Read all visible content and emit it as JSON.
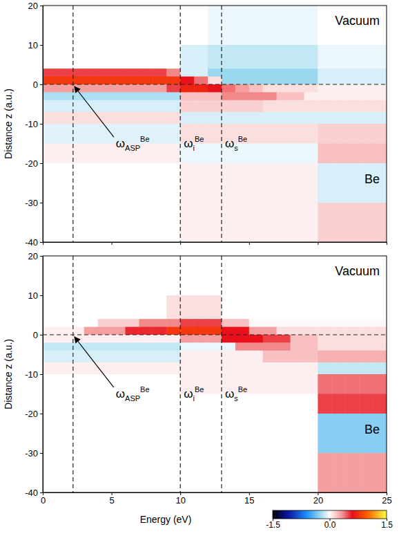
{
  "chart_data": [
    {
      "type": "heatmap",
      "ylabel": "Distance z (a.u.)",
      "xlim": [
        0,
        25
      ],
      "xticks": [
        0,
        5,
        10,
        15,
        20,
        25
      ],
      "ylim": [
        -40,
        20
      ],
      "yticks": [
        -40,
        -30,
        -20,
        -10,
        0,
        10,
        20
      ],
      "tick_labels": "y",
      "region_labels": [
        "Vacuum",
        "Be"
      ],
      "reference_lines": {
        "x": [
          2.2,
          10,
          13
        ],
        "y": [
          0
        ]
      },
      "annotations": [
        {
          "text": "ω",
          "sub": "ASP",
          "sup": "Be"
        },
        {
          "text": "ω",
          "sub": "i",
          "sup": "Be"
        },
        {
          "text": "ω",
          "sub": "s",
          "sup": "Be"
        }
      ],
      "x_edges": [
        0,
        1,
        2,
        3,
        4,
        5,
        6,
        7,
        8,
        9,
        10,
        11,
        12,
        13,
        14,
        15,
        16,
        17,
        18,
        19,
        20,
        21,
        22,
        23,
        24,
        25
      ],
      "y_edges": [
        20,
        10,
        4,
        2,
        0,
        -2,
        -4,
        -7,
        -10,
        -15,
        -20,
        -30,
        -40
      ],
      "cells": [
        [
          0,
          0,
          0,
          0,
          0,
          0,
          0,
          0,
          0,
          0,
          0,
          0,
          -0.05,
          -0.05,
          -0.05,
          -0.05,
          -0.05,
          -0.05,
          -0.05,
          -0.05,
          0,
          0,
          0,
          0,
          0
        ],
        [
          0,
          0,
          0,
          0,
          0,
          0,
          0,
          0,
          0,
          0,
          -0.1,
          -0.1,
          -0.15,
          -0.15,
          -0.15,
          -0.15,
          -0.15,
          -0.15,
          -0.15,
          -0.15,
          -0.05,
          -0.05,
          -0.05,
          -0.05,
          -0.05
        ],
        [
          0.5,
          0.5,
          0.5,
          0.5,
          0.5,
          0.5,
          0.5,
          0.5,
          0.5,
          0.35,
          -0.1,
          -0.1,
          -0.25,
          -0.25,
          -0.25,
          -0.25,
          -0.25,
          -0.25,
          -0.25,
          -0.25,
          -0.1,
          -0.1,
          -0.1,
          -0.1,
          -0.1
        ],
        [
          0.8,
          0.8,
          0.8,
          0.8,
          0.8,
          0.8,
          0.8,
          0.8,
          0.8,
          0.8,
          0.6,
          0.4,
          0.1,
          -0.25,
          -0.25,
          -0.25,
          -0.25,
          -0.25,
          -0.25,
          -0.25,
          -0.1,
          -0.1,
          -0.1,
          -0.1,
          -0.1
        ],
        [
          0.3,
          0.3,
          0.3,
          0.3,
          0.3,
          0.3,
          0.3,
          0.3,
          0.3,
          0.5,
          0.7,
          0.7,
          0.6,
          0.4,
          0.3,
          0.2,
          0.1,
          0.1,
          0.1,
          0.1,
          0.05,
          0.05,
          0.05,
          0.05,
          0.05
        ],
        [
          -0.2,
          -0.2,
          -0.2,
          -0.2,
          -0.2,
          -0.2,
          -0.2,
          -0.2,
          -0.2,
          -0.2,
          0.2,
          0.2,
          0.2,
          0.35,
          0.35,
          0.35,
          0.35,
          0.2,
          0.2,
          0.05,
          0.05,
          0.05,
          0.05,
          0.05,
          0.05
        ],
        [
          -0.1,
          -0.1,
          -0.1,
          -0.1,
          -0.1,
          -0.1,
          -0.1,
          -0.1,
          -0.1,
          -0.1,
          0.15,
          0.15,
          0.15,
          0.15,
          0.15,
          0.15,
          0.1,
          0.1,
          0.1,
          0.1,
          0.1,
          0.1,
          0.1,
          0.1,
          0.1
        ],
        [
          0.1,
          0.1,
          0.1,
          0.1,
          0.1,
          0.1,
          0.1,
          0.1,
          0.1,
          0.1,
          -0.1,
          -0.1,
          -0.1,
          -0.1,
          -0.1,
          -0.1,
          -0.1,
          -0.1,
          -0.1,
          -0.1,
          -0.1,
          -0.1,
          -0.1,
          -0.1,
          -0.1
        ],
        [
          -0.08,
          -0.08,
          -0.08,
          -0.08,
          -0.08,
          -0.08,
          -0.08,
          -0.08,
          -0.08,
          -0.08,
          0.1,
          0.1,
          0.1,
          0.1,
          0.1,
          0.1,
          0.1,
          0.1,
          0.1,
          0.1,
          0.15,
          0.15,
          0.15,
          0.15,
          0.15
        ],
        [
          0.05,
          0.05,
          0.05,
          0.05,
          0.05,
          0.05,
          0.05,
          0.05,
          0.05,
          0.05,
          -0.05,
          -0.05,
          -0.05,
          -0.05,
          -0.05,
          -0.05,
          -0.05,
          -0.05,
          -0.05,
          -0.05,
          0.2,
          0.2,
          0.2,
          0.2,
          0.2
        ],
        [
          0,
          0,
          0,
          0,
          0,
          0,
          0,
          0,
          0,
          0,
          0.05,
          0.05,
          0.05,
          0.05,
          0.05,
          0.05,
          0.05,
          0.05,
          0.05,
          0.05,
          -0.1,
          -0.1,
          -0.1,
          -0.1,
          -0.1
        ],
        [
          0,
          0,
          0,
          0,
          0,
          0,
          0,
          0,
          0,
          0,
          0.05,
          0.05,
          0.05,
          0.05,
          0.05,
          0.05,
          0.05,
          0.05,
          0.05,
          0.05,
          0.15,
          0.15,
          0.15,
          0.15,
          0.15
        ]
      ]
    },
    {
      "type": "heatmap",
      "xlabel": "Energy (eV)",
      "ylabel": "Distance z (a.u.)",
      "xlim": [
        0,
        25
      ],
      "xticks": [
        0,
        5,
        10,
        15,
        20,
        25
      ],
      "ylim": [
        -40,
        20
      ],
      "yticks": [
        -40,
        -30,
        -20,
        -10,
        0,
        10,
        20
      ],
      "region_labels": [
        "Vacuum",
        "Be"
      ],
      "reference_lines": {
        "x": [
          2.2,
          10,
          13
        ],
        "y": [
          0
        ]
      },
      "annotations": [
        {
          "text": "ω",
          "sub": "ASP",
          "sup": "Be"
        },
        {
          "text": "ω",
          "sub": "i",
          "sup": "Be"
        },
        {
          "text": "ω",
          "sub": "s",
          "sup": "Be"
        }
      ],
      "colorbar": {
        "range": [
          -1.5,
          1.5
        ],
        "ticks": [
          -1.5,
          {
            "value": 0,
            "label": "0.0"
          },
          1.5
        ]
      },
      "x_edges": [
        0,
        1,
        2,
        3,
        4,
        5,
        6,
        7,
        8,
        9,
        10,
        11,
        12,
        13,
        14,
        15,
        16,
        17,
        18,
        19,
        20,
        21,
        22,
        23,
        24,
        25
      ],
      "y_edges": [
        20,
        10,
        4,
        2,
        0,
        -2,
        -4,
        -7,
        -10,
        -15,
        -20,
        -30,
        -40
      ],
      "cells": [
        [
          0,
          0,
          0,
          0,
          0,
          0,
          0,
          0,
          0,
          0,
          0,
          0,
          0,
          0,
          0,
          0,
          0,
          0,
          0,
          0,
          0,
          0,
          0,
          0,
          0
        ],
        [
          0,
          0,
          0,
          0,
          0,
          0,
          0,
          0,
          0,
          0.1,
          0.1,
          0.1,
          0.1,
          0,
          0,
          0,
          0,
          0,
          0,
          0,
          0,
          0,
          0,
          0,
          0
        ],
        [
          0,
          0,
          0,
          0,
          0.15,
          0.15,
          0.15,
          0.35,
          0.35,
          0.35,
          0.5,
          0.5,
          0.5,
          0.2,
          0.2,
          0.02,
          0.02,
          0.02,
          0.02,
          0.02,
          0.02,
          0.02,
          0.02,
          0.02,
          0.02
        ],
        [
          0.05,
          0.05,
          0.05,
          0.3,
          0.3,
          0.3,
          0.55,
          0.55,
          0.55,
          0.8,
          0.8,
          0.8,
          0.8,
          0.6,
          0.6,
          0.3,
          0.3,
          0.1,
          0.1,
          0.1,
          0.1,
          0.1,
          0.1,
          0.1,
          0.1
        ],
        [
          0.05,
          0.05,
          0.05,
          0.05,
          0.05,
          0.05,
          0.05,
          0.05,
          0.05,
          0.05,
          0.3,
          0.3,
          0.3,
          0.6,
          0.6,
          0.6,
          0.5,
          0.5,
          0.2,
          0.2,
          0.1,
          0.1,
          0.1,
          0.1,
          0.1
        ],
        [
          -0.15,
          -0.15,
          -0.15,
          -0.15,
          -0.15,
          -0.15,
          -0.15,
          -0.15,
          -0.15,
          -0.15,
          -0.05,
          -0.05,
          -0.05,
          -0.05,
          0.35,
          0.35,
          0.35,
          0.35,
          0.2,
          0.2,
          0.1,
          0.1,
          0.1,
          0.1,
          0.1
        ],
        [
          -0.1,
          -0.1,
          -0.1,
          -0.1,
          -0.1,
          -0.1,
          -0.1,
          -0.1,
          -0.1,
          -0.1,
          0.05,
          0.05,
          0.05,
          0.05,
          0.05,
          0.05,
          0.2,
          0.2,
          0.2,
          0.2,
          0.25,
          0.25,
          0.25,
          0.25,
          0.25
        ],
        [
          0.05,
          0.05,
          0.05,
          0.05,
          0.05,
          0.05,
          0.05,
          0.05,
          0.05,
          0.05,
          0.05,
          0.05,
          0.05,
          0.05,
          0.05,
          0.05,
          0.05,
          0.05,
          0.05,
          0.05,
          -0.15,
          -0.15,
          -0.15,
          -0.15,
          -0.15
        ],
        [
          0,
          0,
          0,
          0,
          0,
          0,
          0,
          0,
          0,
          0,
          0.05,
          0.05,
          0.05,
          0.05,
          0.05,
          0.05,
          0.05,
          0.05,
          0.05,
          0.05,
          0.4,
          0.4,
          0.4,
          0.4,
          0.4
        ],
        [
          0,
          0,
          0,
          0,
          0,
          0,
          0,
          0,
          0,
          0,
          0,
          0,
          0,
          0,
          0,
          0,
          0,
          0,
          0,
          0,
          0.5,
          0.5,
          0.5,
          0.5,
          0.5
        ],
        [
          0,
          0,
          0,
          0,
          0,
          0,
          0,
          0,
          0,
          0,
          0,
          0,
          0,
          0,
          0,
          0,
          0,
          0,
          0,
          0,
          -0.3,
          -0.3,
          -0.3,
          -0.3,
          -0.3
        ],
        [
          0,
          0,
          0,
          0,
          0,
          0,
          0,
          0,
          0,
          0,
          0,
          0,
          0,
          0,
          0,
          0,
          0,
          0,
          0,
          0,
          0.3,
          0.3,
          0.3,
          0.3,
          0.3
        ]
      ]
    }
  ]
}
